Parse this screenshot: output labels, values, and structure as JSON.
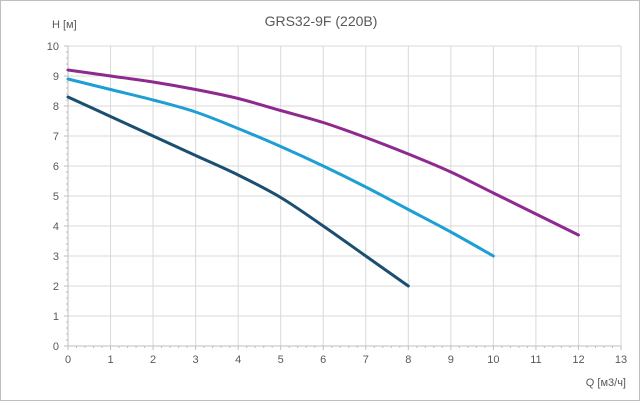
{
  "chart_data": {
    "type": "line",
    "title": "GRS32-9F (220В)",
    "xlabel": "Q [м3/ч]",
    "ylabel": "H [м]",
    "xlim": [
      0,
      13
    ],
    "ylim": [
      0,
      10
    ],
    "xticks": [
      0,
      1,
      2,
      3,
      4,
      5,
      6,
      7,
      8,
      9,
      10,
      11,
      12,
      13
    ],
    "yticks": [
      0,
      1,
      2,
      3,
      4,
      5,
      6,
      7,
      8,
      9,
      10
    ],
    "grid": true,
    "legend": "none",
    "series": [
      {
        "color": "#1b4f72",
        "x": [
          0,
          1,
          2,
          3,
          4,
          5,
          6,
          7,
          8
        ],
        "y": [
          8.3,
          7.65,
          7.0,
          6.35,
          5.7,
          4.95,
          4.0,
          3.0,
          2.0
        ]
      },
      {
        "color": "#1e9fd4",
        "x": [
          0,
          1,
          2,
          3,
          4,
          5,
          6,
          7,
          8,
          9,
          10
        ],
        "y": [
          8.9,
          8.55,
          8.2,
          7.8,
          7.25,
          6.65,
          6.0,
          5.3,
          4.55,
          3.8,
          3.0
        ]
      },
      {
        "color": "#8e2a8f",
        "x": [
          0,
          1,
          2,
          3,
          4,
          5,
          6,
          7,
          8,
          9,
          10,
          11,
          12
        ],
        "y": [
          9.2,
          9.0,
          8.8,
          8.55,
          8.25,
          7.85,
          7.45,
          6.95,
          6.4,
          5.8,
          5.1,
          4.4,
          3.7
        ]
      }
    ]
  }
}
